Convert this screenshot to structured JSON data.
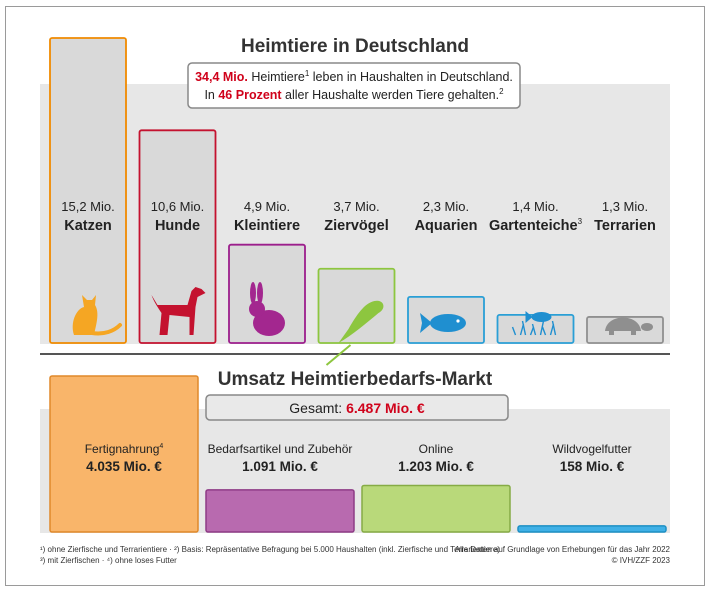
{
  "top_title": "Heimtiere in Deutschland",
  "info_box": {
    "line1": {
      "highlight": "34,4 Mio.",
      "sup": "1",
      "pre": " Heimtiere",
      "post": " leben in Haushalten in Deutschland."
    },
    "line2": {
      "pre": "In ",
      "highlight": "46 Prozent",
      "post": " aller Haushalte werden Tiere gehalten.",
      "sup": "2"
    }
  },
  "bottom_title": "Umsatz Heimtierbedarfs-Markt",
  "total_box": {
    "label": "Gesamt: ",
    "value": "6.487 Mio. €"
  },
  "footnotes": {
    "left_line1": "¹) ohne Zierfische und Terrarientiere · ²) Basis: Repräsentative Befragung bei 5.000 Haushalten (inkl. Zierfische und Terrarientiere)",
    "left_line2": "³) mit Zierfischen · ⁴) ohne loses Futter",
    "right_line1": "Alle Daten auf Grundlage von Erhebungen für das Jahr 2022",
    "right_line2": "© IVH/ZZF 2023"
  },
  "colors": {
    "panel": "#e7e7e7",
    "separator": "#555555",
    "highlight_red": "#d0021b"
  },
  "chart_data": [
    {
      "type": "bar",
      "title": "Heimtiere in Deutschland",
      "unit": "Mio.",
      "categories": [
        "Katzen",
        "Hunde",
        "Kleintiere",
        "Ziervögel",
        "Aquarien",
        "Gartenteiche",
        "Terrarien"
      ],
      "values": [
        15.2,
        10.6,
        4.9,
        3.7,
        2.3,
        1.4,
        1.3
      ],
      "value_labels": [
        "15,2 Mio.",
        "10,6 Mio.",
        "4,9 Mio.",
        "3,7 Mio.",
        "2,3 Mio.",
        "1,4 Mio.",
        "1,3 Mio."
      ],
      "category_sups": [
        "",
        "",
        "",
        "",
        "",
        "3",
        ""
      ],
      "icons": [
        "cat-icon",
        "dog-icon",
        "rabbit-icon",
        "parrot-icon",
        "fish-icon",
        "pond-fish-icon",
        "turtle-icon"
      ],
      "border_colors": [
        "#f08a00",
        "#c4122f",
        "#9c1e8c",
        "#8dc63f",
        "#2a9fd6",
        "#2a9fd6",
        "#909090"
      ],
      "icon_colors": [
        "#f5a623",
        "#c4122f",
        "#a3278f",
        "#8dc63f",
        "#1f8fd0",
        "#1f8fd0",
        "#8f8f8f"
      ],
      "bar_fill": "#d9d9d9"
    },
    {
      "type": "bar",
      "title": "Umsatz Heimtierbedarfs-Markt",
      "unit": "Mio. €",
      "categories": [
        "Fertignahrung",
        "Bedarfsartikel und Zubehör",
        "Online",
        "Wildvogelfutter"
      ],
      "category_sups": [
        "4",
        "",
        "",
        ""
      ],
      "values": [
        4035,
        1091,
        1203,
        158
      ],
      "value_labels": [
        "4.035 Mio. €",
        "1.091 Mio. €",
        "1.203 Mio. €",
        "158 Mio. €"
      ],
      "colors": [
        "#f9b56a",
        "#b86aaf",
        "#b9d97a",
        "#3fb0e6"
      ],
      "border_colors": [
        "#e0892a",
        "#8e3b86",
        "#86ab45",
        "#1d8fc4"
      ],
      "total": 6487,
      "total_label": "6.487 Mio. €"
    }
  ]
}
